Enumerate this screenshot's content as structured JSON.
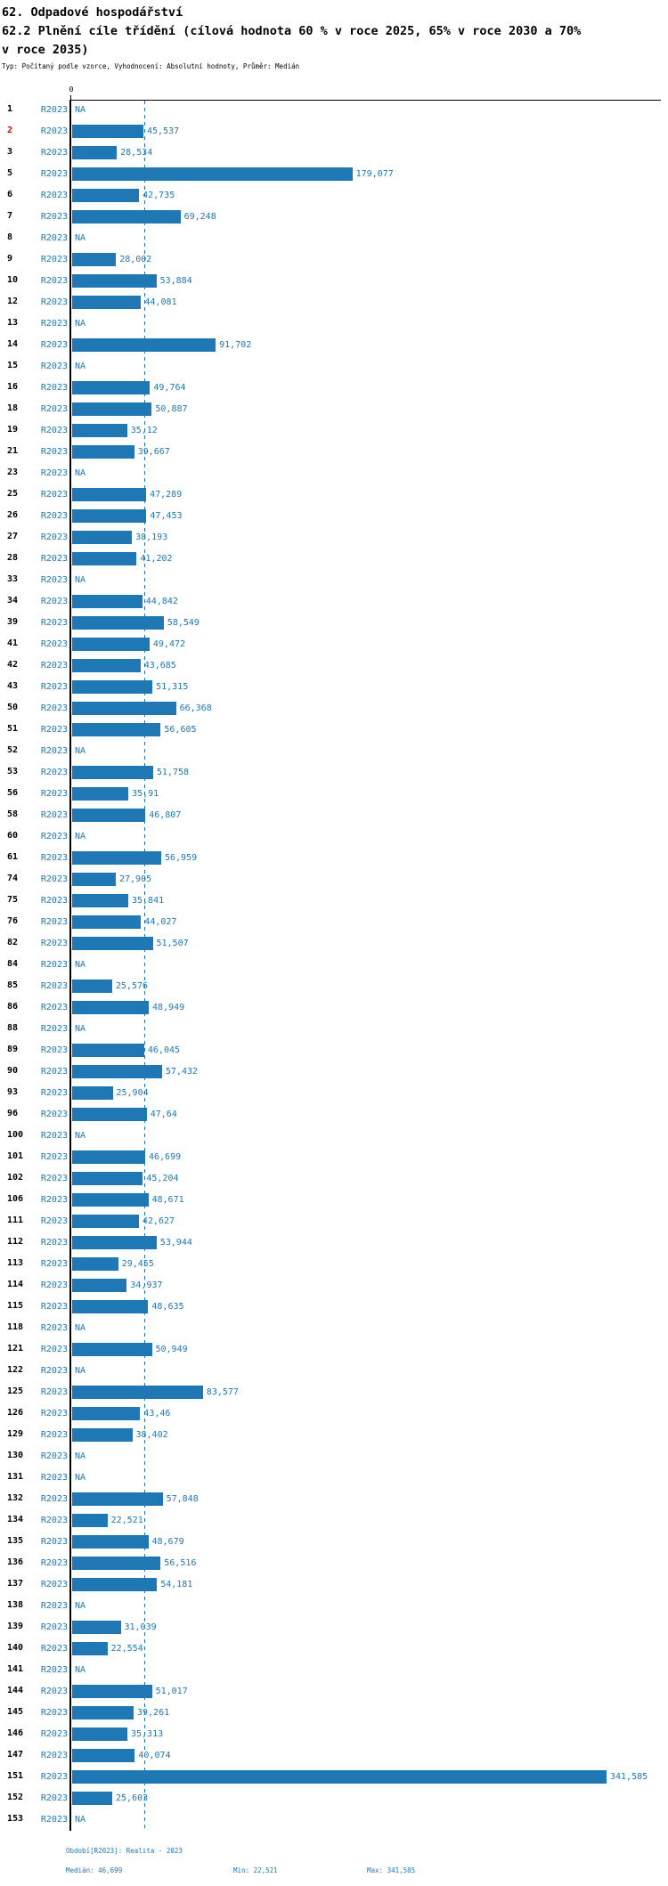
{
  "header": {
    "title": "62. Odpadové hospodářství",
    "subtitle": "62.2 Plnění cíle třídění (cílová hodnota 60 % v roce 2025, 65% v roce 2030 a 70% v roce 2035)",
    "meta": "Typ: Počítaný podle vzorce, Vyhodnocení: Absolutní hodnoty, Průměr: Medián"
  },
  "chart_data": {
    "type": "bar",
    "orientation": "horizontal",
    "series_label": "R2023",
    "axis_zero_label": "0",
    "na_text": "NA",
    "value_axis": {
      "zero_at_left": true,
      "median": 46.699,
      "min": 22.521,
      "max": 341.585
    },
    "legend": "none",
    "grid": "median dashed vertical line only",
    "rows": [
      {
        "id": "1",
        "value": null,
        "label": "NA"
      },
      {
        "id": "2",
        "value": 45.537,
        "label": "45,537",
        "highlight": true
      },
      {
        "id": "3",
        "value": 28.534,
        "label": "28,534"
      },
      {
        "id": "5",
        "value": 179.077,
        "label": "179,077"
      },
      {
        "id": "6",
        "value": 42.735,
        "label": "42,735"
      },
      {
        "id": "7",
        "value": 69.248,
        "label": "69,248"
      },
      {
        "id": "8",
        "value": null,
        "label": "NA"
      },
      {
        "id": "9",
        "value": 28.002,
        "label": "28,002"
      },
      {
        "id": "10",
        "value": 53.884,
        "label": "53,884"
      },
      {
        "id": "12",
        "value": 44.081,
        "label": "44,081"
      },
      {
        "id": "13",
        "value": null,
        "label": "NA"
      },
      {
        "id": "14",
        "value": 91.702,
        "label": "91,702"
      },
      {
        "id": "15",
        "value": null,
        "label": "NA"
      },
      {
        "id": "16",
        "value": 49.764,
        "label": "49,764"
      },
      {
        "id": "18",
        "value": 50.887,
        "label": "50,887"
      },
      {
        "id": "19",
        "value": 35.12,
        "label": "35,12"
      },
      {
        "id": "21",
        "value": 39.667,
        "label": "39,667"
      },
      {
        "id": "23",
        "value": null,
        "label": "NA"
      },
      {
        "id": "25",
        "value": 47.289,
        "label": "47,289"
      },
      {
        "id": "26",
        "value": 47.453,
        "label": "47,453"
      },
      {
        "id": "27",
        "value": 38.193,
        "label": "38,193"
      },
      {
        "id": "28",
        "value": 41.202,
        "label": "41,202"
      },
      {
        "id": "33",
        "value": null,
        "label": "NA"
      },
      {
        "id": "34",
        "value": 44.842,
        "label": "44,842"
      },
      {
        "id": "39",
        "value": 58.549,
        "label": "58,549"
      },
      {
        "id": "41",
        "value": 49.472,
        "label": "49,472"
      },
      {
        "id": "42",
        "value": 43.685,
        "label": "43,685"
      },
      {
        "id": "43",
        "value": 51.315,
        "label": "51,315"
      },
      {
        "id": "50",
        "value": 66.368,
        "label": "66,368"
      },
      {
        "id": "51",
        "value": 56.605,
        "label": "56,605"
      },
      {
        "id": "52",
        "value": null,
        "label": "NA"
      },
      {
        "id": "53",
        "value": 51.758,
        "label": "51,758"
      },
      {
        "id": "56",
        "value": 35.91,
        "label": "35,91"
      },
      {
        "id": "58",
        "value": 46.807,
        "label": "46,807"
      },
      {
        "id": "60",
        "value": null,
        "label": "NA"
      },
      {
        "id": "61",
        "value": 56.959,
        "label": "56,959"
      },
      {
        "id": "74",
        "value": 27.905,
        "label": "27,905"
      },
      {
        "id": "75",
        "value": 35.841,
        "label": "35,841"
      },
      {
        "id": "76",
        "value": 44.027,
        "label": "44,027"
      },
      {
        "id": "82",
        "value": 51.507,
        "label": "51,507"
      },
      {
        "id": "84",
        "value": null,
        "label": "NA"
      },
      {
        "id": "85",
        "value": 25.576,
        "label": "25,576"
      },
      {
        "id": "86",
        "value": 48.949,
        "label": "48,949"
      },
      {
        "id": "88",
        "value": null,
        "label": "NA"
      },
      {
        "id": "89",
        "value": 46.045,
        "label": "46,045"
      },
      {
        "id": "90",
        "value": 57.432,
        "label": "57,432"
      },
      {
        "id": "93",
        "value": 25.904,
        "label": "25,904"
      },
      {
        "id": "96",
        "value": 47.64,
        "label": "47,64"
      },
      {
        "id": "100",
        "value": null,
        "label": "NA"
      },
      {
        "id": "101",
        "value": 46.699,
        "label": "46,699"
      },
      {
        "id": "102",
        "value": 45.204,
        "label": "45,204"
      },
      {
        "id": "106",
        "value": 48.671,
        "label": "48,671"
      },
      {
        "id": "111",
        "value": 42.627,
        "label": "42,627"
      },
      {
        "id": "112",
        "value": 53.944,
        "label": "53,944"
      },
      {
        "id": "113",
        "value": 29.455,
        "label": "29,455"
      },
      {
        "id": "114",
        "value": 34.937,
        "label": "34,937"
      },
      {
        "id": "115",
        "value": 48.635,
        "label": "48,635"
      },
      {
        "id": "118",
        "value": null,
        "label": "NA"
      },
      {
        "id": "121",
        "value": 50.949,
        "label": "50,949"
      },
      {
        "id": "122",
        "value": null,
        "label": "NA"
      },
      {
        "id": "125",
        "value": 83.577,
        "label": "83,577"
      },
      {
        "id": "126",
        "value": 43.46,
        "label": "43,46"
      },
      {
        "id": "129",
        "value": 38.402,
        "label": "38,402"
      },
      {
        "id": "130",
        "value": null,
        "label": "NA"
      },
      {
        "id": "131",
        "value": null,
        "label": "NA"
      },
      {
        "id": "132",
        "value": 57.848,
        "label": "57,848"
      },
      {
        "id": "134",
        "value": 22.521,
        "label": "22,521"
      },
      {
        "id": "135",
        "value": 48.679,
        "label": "48,679"
      },
      {
        "id": "136",
        "value": 56.516,
        "label": "56,516"
      },
      {
        "id": "137",
        "value": 54.181,
        "label": "54,181"
      },
      {
        "id": "138",
        "value": null,
        "label": "NA"
      },
      {
        "id": "139",
        "value": 31.039,
        "label": "31,039"
      },
      {
        "id": "140",
        "value": 22.554,
        "label": "22,554"
      },
      {
        "id": "141",
        "value": null,
        "label": "NA"
      },
      {
        "id": "144",
        "value": 51.017,
        "label": "51,017"
      },
      {
        "id": "145",
        "value": 39.261,
        "label": "39,261"
      },
      {
        "id": "146",
        "value": 35.313,
        "label": "35,313"
      },
      {
        "id": "147",
        "value": 40.074,
        "label": "40,074"
      },
      {
        "id": "151",
        "value": 341.585,
        "label": "341,585"
      },
      {
        "id": "152",
        "value": 25.603,
        "label": "25,603"
      },
      {
        "id": "153",
        "value": null,
        "label": "NA"
      }
    ]
  },
  "footer": {
    "period": "Období[R2023]: Realita - 2023",
    "median": "Medián: 46,699",
    "min": "Min: 22,521",
    "max": "Max: 341,585"
  },
  "colors": {
    "bar_blue": "#1f77b4",
    "highlight_red": "#e60000",
    "axis_black": "#000000"
  }
}
